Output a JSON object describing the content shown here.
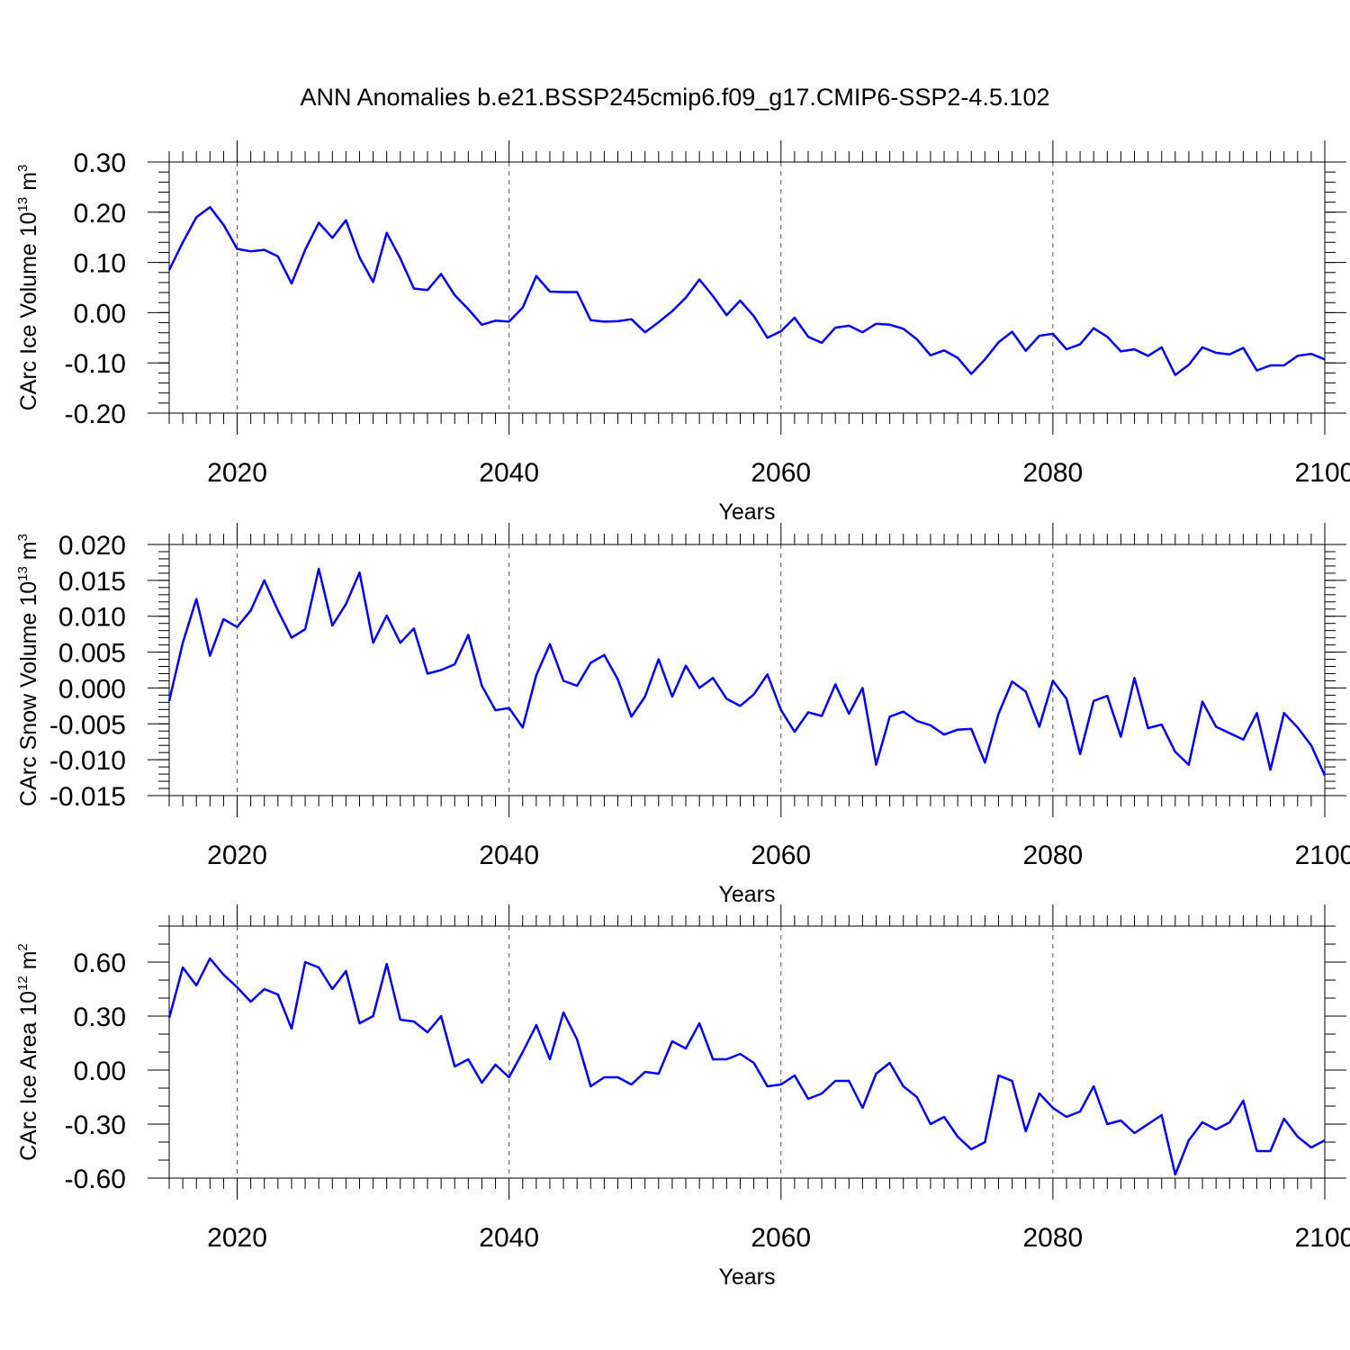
{
  "title": "ANN Anomalies b.e21.BSSP245cmip6.f09_g17.CMIP6-SSP2-4.5.102",
  "colors": {
    "line": "#0000ff",
    "axes": "#000000"
  },
  "chart_data": [
    {
      "type": "line",
      "ylabel_main": "CArc Ice Volume 10",
      "ylabel_exp": "13",
      "ylabel_unit": "m",
      "ylabel_unit_exp": "3",
      "xlabel": "Years",
      "xlim": [
        2015,
        2100
      ],
      "ylim": [
        -0.2,
        0.3
      ],
      "yticks": [
        -0.2,
        -0.1,
        0.0,
        0.1,
        0.2,
        0.3
      ],
      "ytick_labels": [
        "-0.20",
        "-0.10",
        "0.00",
        "0.10",
        "0.20",
        "0.30"
      ],
      "yminor_step": 0.02,
      "xticks": [
        2020,
        2040,
        2060,
        2080,
        2100
      ],
      "xtick_labels": [
        "2020",
        "2040",
        "2060",
        "2080",
        "2100"
      ],
      "grid": "dashed vertical at major x ticks",
      "x_start": 2015,
      "values": [
        0.085,
        0.14,
        0.19,
        0.21,
        0.175,
        0.127,
        0.122,
        0.125,
        0.112,
        0.058,
        0.125,
        0.179,
        0.149,
        0.184,
        0.11,
        0.061,
        0.159,
        0.108,
        0.048,
        0.045,
        0.077,
        0.035,
        0.007,
        -0.024,
        -0.016,
        -0.018,
        0.01,
        0.073,
        0.042,
        0.041,
        0.041,
        -0.015,
        -0.018,
        -0.017,
        -0.013,
        -0.039,
        -0.019,
        0.003,
        0.03,
        0.066,
        0.033,
        -0.005,
        0.024,
        -0.007,
        -0.05,
        -0.037,
        -0.01,
        -0.048,
        -0.06,
        -0.03,
        -0.026,
        -0.039,
        -0.022,
        -0.024,
        -0.032,
        -0.053,
        -0.085,
        -0.075,
        -0.09,
        -0.122,
        -0.093,
        -0.059,
        -0.038,
        -0.076,
        -0.046,
        -0.042,
        -0.073,
        -0.063,
        -0.031,
        -0.048,
        -0.077,
        -0.073,
        -0.086,
        -0.069,
        -0.124,
        -0.104,
        -0.069,
        -0.08,
        -0.083,
        -0.07,
        -0.115,
        -0.105,
        -0.105,
        -0.086,
        -0.082,
        -0.093
      ]
    },
    {
      "type": "line",
      "ylabel_main": "CArc Snow Volume 10",
      "ylabel_exp": "13",
      "ylabel_unit": "m",
      "ylabel_unit_exp": "3",
      "xlabel": "Years",
      "xlim": [
        2015,
        2100
      ],
      "ylim": [
        -0.015,
        0.02
      ],
      "yticks": [
        -0.015,
        -0.01,
        -0.005,
        0.0,
        0.005,
        0.01,
        0.015,
        0.02
      ],
      "ytick_labels": [
        "-0.015",
        "-0.010",
        "-0.005",
        "0.000",
        "0.005",
        "0.010",
        "0.015",
        "0.020"
      ],
      "yminor_step": 0.001,
      "xticks": [
        2020,
        2040,
        2060,
        2080,
        2100
      ],
      "xtick_labels": [
        "2020",
        "2040",
        "2060",
        "2080",
        "2100"
      ],
      "grid": "dashed vertical at major x ticks",
      "x_start": 2015,
      "values": [
        -0.0018,
        0.0063,
        0.0124,
        0.0045,
        0.0096,
        0.0085,
        0.0108,
        0.015,
        0.0108,
        0.007,
        0.0082,
        0.0166,
        0.0087,
        0.0117,
        0.0161,
        0.0063,
        0.0101,
        0.0063,
        0.0083,
        0.002,
        0.0025,
        0.0033,
        0.0074,
        0.0003,
        -0.0031,
        -0.0028,
        -0.0055,
        0.0018,
        0.0061,
        0.001,
        0.0003,
        0.0035,
        0.0046,
        0.0012,
        -0.004,
        -0.0012,
        0.004,
        -0.0012,
        0.0031,
        0.0,
        0.0014,
        -0.0015,
        -0.0025,
        -0.0009,
        0.0019,
        -0.0031,
        -0.0061,
        -0.0034,
        -0.0039,
        0.0005,
        -0.0036,
        0.0,
        -0.0107,
        -0.004,
        -0.0033,
        -0.0046,
        -0.0052,
        -0.0065,
        -0.0058,
        -0.0057,
        -0.0104,
        -0.0036,
        0.0009,
        -0.0005,
        -0.0054,
        0.001,
        -0.0015,
        -0.0092,
        -0.0018,
        -0.0011,
        -0.0068,
        0.0014,
        -0.0056,
        -0.0051,
        -0.0089,
        -0.0107,
        -0.0019,
        -0.0054,
        -0.0063,
        -0.0072,
        -0.0035,
        -0.0114,
        -0.0035,
        -0.0055,
        -0.008,
        -0.0122
      ]
    },
    {
      "type": "line",
      "ylabel_main": "CArc Ice Area 10",
      "ylabel_exp": "12",
      "ylabel_unit": "m",
      "ylabel_unit_exp": "2",
      "xlabel": "Years",
      "xlim": [
        2015,
        2100
      ],
      "ylim": [
        -0.6,
        0.8
      ],
      "yticks": [
        -0.6,
        -0.3,
        0.0,
        0.3,
        0.6
      ],
      "ytick_labels": [
        "-0.60",
        "-0.30",
        "0.00",
        "0.30",
        "0.60"
      ],
      "yminor_step": 0.1,
      "xticks": [
        2020,
        2040,
        2060,
        2080,
        2100
      ],
      "xtick_labels": [
        "2020",
        "2040",
        "2060",
        "2080",
        "2100"
      ],
      "grid": "dashed vertical at major x ticks",
      "x_start": 2015,
      "values": [
        0.29,
        0.57,
        0.47,
        0.62,
        0.53,
        0.46,
        0.38,
        0.45,
        0.42,
        0.23,
        0.6,
        0.57,
        0.45,
        0.55,
        0.26,
        0.3,
        0.59,
        0.28,
        0.27,
        0.21,
        0.3,
        0.02,
        0.06,
        -0.07,
        0.03,
        -0.04,
        0.1,
        0.25,
        0.06,
        0.32,
        0.17,
        -0.09,
        -0.04,
        -0.04,
        -0.08,
        -0.01,
        -0.02,
        0.16,
        0.12,
        0.26,
        0.06,
        0.06,
        0.09,
        0.04,
        -0.09,
        -0.08,
        -0.03,
        -0.16,
        -0.13,
        -0.06,
        -0.06,
        -0.21,
        -0.02,
        0.04,
        -0.09,
        -0.15,
        -0.3,
        -0.26,
        -0.37,
        -0.44,
        -0.4,
        -0.03,
        -0.06,
        -0.34,
        -0.13,
        -0.21,
        -0.26,
        -0.23,
        -0.09,
        -0.3,
        -0.28,
        -0.35,
        -0.3,
        -0.25,
        -0.58,
        -0.39,
        -0.29,
        -0.33,
        -0.29,
        -0.17,
        -0.45,
        -0.45,
        -0.27,
        -0.37,
        -0.43,
        -0.39
      ]
    }
  ]
}
